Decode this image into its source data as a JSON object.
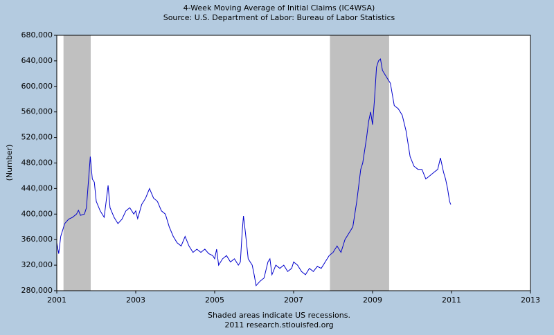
{
  "chart_data": {
    "type": "line",
    "title": "4-Week Moving Average of Initial Claims (IC4WSA)",
    "subtitle": "Source: U.S. Department of Labor: Bureau of Labor Statistics",
    "y_label": "(Number)",
    "notes": [
      "Shaded areas indicate US recessions.",
      "2011 research.stlouisfed.org"
    ],
    "xlim": [
      2001,
      2013
    ],
    "xticks": [
      2001,
      2003,
      2005,
      2007,
      2009,
      2011,
      2013
    ],
    "ylim": [
      280000,
      680000
    ],
    "yticks": [
      {
        "value": 280000,
        "label": "280,000"
      },
      {
        "value": 320000,
        "label": "320,000"
      },
      {
        "value": 360000,
        "label": "360,000"
      },
      {
        "value": 400000,
        "label": "400,000"
      },
      {
        "value": 440000,
        "label": "440,000"
      },
      {
        "value": 480000,
        "label": "480,000"
      },
      {
        "value": 520000,
        "label": "520,000"
      },
      {
        "value": 560000,
        "label": "560,000"
      },
      {
        "value": 600000,
        "label": "600,000"
      },
      {
        "value": 640000,
        "label": "640,000"
      },
      {
        "value": 680000,
        "label": "680,000"
      }
    ],
    "recessions": [
      [
        2001.17,
        2001.86
      ],
      [
        2007.92,
        2009.42
      ]
    ],
    "recession_color": "#c0c0c0",
    "series": [
      {
        "name": "IC4WSA",
        "color": "#0000cc",
        "x": [
          2001.0,
          2001.05,
          2001.1,
          2001.2,
          2001.3,
          2001.4,
          2001.5,
          2001.55,
          2001.6,
          2001.7,
          2001.75,
          2001.8,
          2001.85,
          2001.9,
          2001.95,
          2002.0,
          2002.1,
          2002.2,
          2002.25,
          2002.3,
          2002.35,
          2002.45,
          2002.55,
          2002.65,
          2002.75,
          2002.85,
          2002.95,
          2003.0,
          2003.05,
          2003.15,
          2003.25,
          2003.35,
          2003.45,
          2003.55,
          2003.65,
          2003.75,
          2003.85,
          2003.95,
          2004.05,
          2004.15,
          2004.25,
          2004.35,
          2004.45,
          2004.55,
          2004.65,
          2004.75,
          2004.85,
          2004.95,
          2005.0,
          2005.05,
          2005.1,
          2005.2,
          2005.3,
          2005.4,
          2005.5,
          2005.6,
          2005.65,
          2005.7,
          2005.73,
          2005.78,
          2005.85,
          2005.95,
          2006.0,
          2006.05,
          2006.15,
          2006.25,
          2006.35,
          2006.4,
          2006.45,
          2006.55,
          2006.65,
          2006.75,
          2006.85,
          2006.95,
          2007.0,
          2007.1,
          2007.2,
          2007.3,
          2007.4,
          2007.5,
          2007.6,
          2007.7,
          2007.8,
          2007.9,
          2008.0,
          2008.1,
          2008.2,
          2008.3,
          2008.4,
          2008.5,
          2008.6,
          2008.7,
          2008.75,
          2008.85,
          2008.9,
          2008.95,
          2009.0,
          2009.05,
          2009.1,
          2009.15,
          2009.2,
          2009.25,
          2009.35,
          2009.45,
          2009.55,
          2009.65,
          2009.75,
          2009.85,
          2009.95,
          2010.05,
          2010.15,
          2010.25,
          2010.35,
          2010.45,
          2010.55,
          2010.65,
          2010.72,
          2010.8,
          2010.85,
          2010.9,
          2010.95,
          2010.98
        ],
        "values": [
          355000,
          338000,
          365000,
          385000,
          392000,
          395000,
          400000,
          406000,
          398000,
          400000,
          410000,
          450000,
          490000,
          455000,
          450000,
          420000,
          405000,
          395000,
          420000,
          445000,
          410000,
          395000,
          385000,
          392000,
          405000,
          410000,
          400000,
          405000,
          393000,
          415000,
          425000,
          440000,
          425000,
          420000,
          405000,
          400000,
          380000,
          365000,
          355000,
          350000,
          365000,
          350000,
          340000,
          345000,
          340000,
          345000,
          338000,
          335000,
          330000,
          345000,
          320000,
          330000,
          335000,
          325000,
          330000,
          320000,
          325000,
          375000,
          397000,
          370000,
          330000,
          320000,
          305000,
          288000,
          295000,
          300000,
          325000,
          330000,
          305000,
          320000,
          315000,
          320000,
          310000,
          315000,
          325000,
          320000,
          310000,
          305000,
          315000,
          310000,
          318000,
          315000,
          325000,
          335000,
          340000,
          350000,
          340000,
          360000,
          370000,
          380000,
          420000,
          470000,
          480000,
          520000,
          545000,
          560000,
          540000,
          580000,
          630000,
          640000,
          643000,
          625000,
          615000,
          605000,
          570000,
          565000,
          555000,
          530000,
          490000,
          475000,
          470000,
          470000,
          455000,
          460000,
          465000,
          470000,
          488000,
          465000,
          455000,
          440000,
          420000,
          415000
        ]
      }
    ]
  }
}
